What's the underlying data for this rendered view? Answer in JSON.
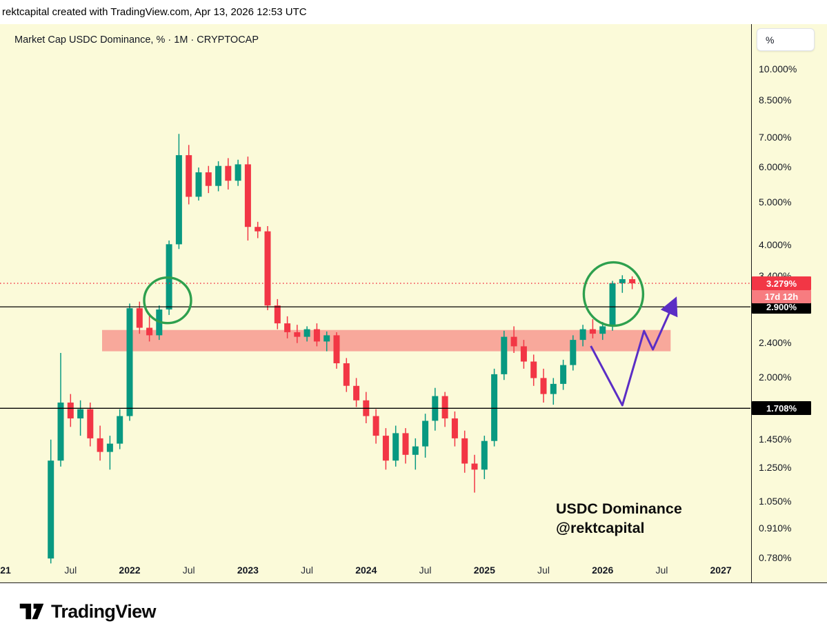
{
  "topbar": {
    "attribution": "rektcapital created with TradingView.com, Apr 13, 2026 12:53 UTC"
  },
  "chart": {
    "title": "Market Cap USDC Dominance, % · 1M · CRYPTOCAP",
    "annotation": {
      "line1": "USDC Dominance",
      "line2": "@rektcapital"
    },
    "axis_unit_button": "%"
  },
  "footer": {
    "brand": "TradingView"
  },
  "colors": {
    "background": "#FBFAD9",
    "candle_up": "#089981",
    "candle_down": "#F23645",
    "zone_fill": "#F23645",
    "circle_stroke": "#2EA04E",
    "arrow_stroke": "#5B2EC5",
    "price_line": "#000000",
    "last_price": "#F23645",
    "countdown_bg": "#F77C80",
    "line_badge_bg": "#000000"
  },
  "chart_data": {
    "type": "candlestick",
    "scale": "logarithmic",
    "interval": "1M",
    "title": "Market Cap USDC Dominance, % · 1M · CRYPTOCAP",
    "ohlc_format": [
      "month",
      "open",
      "high",
      "low",
      "close"
    ],
    "candles": [
      [
        "2021-05",
        0.78,
        1.45,
        0.76,
        1.3
      ],
      [
        "2021-06",
        1.3,
        2.28,
        1.26,
        1.76
      ],
      [
        "2021-07",
        1.76,
        1.84,
        1.55,
        1.62
      ],
      [
        "2021-08",
        1.62,
        1.78,
        1.48,
        1.7
      ],
      [
        "2021-09",
        1.7,
        1.76,
        1.4,
        1.46
      ],
      [
        "2021-10",
        1.46,
        1.56,
        1.3,
        1.36
      ],
      [
        "2021-11",
        1.36,
        1.48,
        1.24,
        1.42
      ],
      [
        "2021-12",
        1.42,
        1.7,
        1.38,
        1.64
      ],
      [
        "2022-01",
        1.64,
        2.95,
        1.6,
        2.88
      ],
      [
        "2022-02",
        2.88,
        2.98,
        2.52,
        2.6
      ],
      [
        "2022-03",
        2.6,
        2.78,
        2.42,
        2.5
      ],
      [
        "2022-04",
        2.5,
        2.92,
        2.44,
        2.86
      ],
      [
        "2022-05",
        2.86,
        4.1,
        2.78,
        4.02
      ],
      [
        "2022-06",
        4.02,
        7.15,
        3.92,
        6.4
      ],
      [
        "2022-07",
        6.4,
        6.75,
        4.95,
        5.15
      ],
      [
        "2022-08",
        5.15,
        6.0,
        5.05,
        5.85
      ],
      [
        "2022-09",
        5.85,
        6.05,
        5.25,
        5.45
      ],
      [
        "2022-10",
        5.45,
        6.2,
        5.3,
        6.05
      ],
      [
        "2022-11",
        6.05,
        6.3,
        5.35,
        5.6
      ],
      [
        "2022-12",
        5.6,
        6.25,
        5.45,
        6.1
      ],
      [
        "2023-01",
        6.1,
        6.35,
        4.1,
        4.4
      ],
      [
        "2023-02",
        4.4,
        4.52,
        4.15,
        4.3
      ],
      [
        "2023-03",
        4.3,
        4.42,
        2.85,
        2.92
      ],
      [
        "2023-04",
        2.92,
        3.02,
        2.58,
        2.66
      ],
      [
        "2023-05",
        2.66,
        2.76,
        2.46,
        2.54
      ],
      [
        "2023-06",
        2.54,
        2.64,
        2.4,
        2.48
      ],
      [
        "2023-07",
        2.48,
        2.62,
        2.42,
        2.58
      ],
      [
        "2023-08",
        2.58,
        2.66,
        2.36,
        2.42
      ],
      [
        "2023-09",
        2.42,
        2.55,
        2.3,
        2.5
      ],
      [
        "2023-10",
        2.5,
        2.54,
        2.1,
        2.16
      ],
      [
        "2023-11",
        2.16,
        2.22,
        1.86,
        1.92
      ],
      [
        "2023-12",
        1.92,
        2.0,
        1.72,
        1.78
      ],
      [
        "2024-01",
        1.78,
        1.86,
        1.58,
        1.64
      ],
      [
        "2024-02",
        1.64,
        1.7,
        1.42,
        1.48
      ],
      [
        "2024-03",
        1.48,
        1.54,
        1.24,
        1.3
      ],
      [
        "2024-04",
        1.3,
        1.56,
        1.26,
        1.5
      ],
      [
        "2024-05",
        1.5,
        1.54,
        1.28,
        1.34
      ],
      [
        "2024-06",
        1.34,
        1.46,
        1.24,
        1.4
      ],
      [
        "2024-07",
        1.4,
        1.66,
        1.32,
        1.6
      ],
      [
        "2024-08",
        1.6,
        1.9,
        1.52,
        1.82
      ],
      [
        "2024-09",
        1.82,
        1.86,
        1.55,
        1.62
      ],
      [
        "2024-10",
        1.62,
        1.68,
        1.4,
        1.46
      ],
      [
        "2024-11",
        1.46,
        1.52,
        1.22,
        1.28
      ],
      [
        "2024-12",
        1.28,
        1.34,
        1.1,
        1.24
      ],
      [
        "2025-01",
        1.24,
        1.48,
        1.18,
        1.44
      ],
      [
        "2025-02",
        1.44,
        2.1,
        1.4,
        2.04
      ],
      [
        "2025-03",
        2.04,
        2.56,
        1.98,
        2.48
      ],
      [
        "2025-04",
        2.48,
        2.62,
        2.28,
        2.36
      ],
      [
        "2025-05",
        2.36,
        2.44,
        2.1,
        2.18
      ],
      [
        "2025-06",
        2.18,
        2.26,
        1.92,
        2.0
      ],
      [
        "2025-07",
        2.0,
        2.1,
        1.76,
        1.84
      ],
      [
        "2025-08",
        1.84,
        2.0,
        1.74,
        1.94
      ],
      [
        "2025-09",
        1.94,
        2.2,
        1.88,
        2.14
      ],
      [
        "2025-10",
        2.14,
        2.5,
        2.08,
        2.44
      ],
      [
        "2025-11",
        2.44,
        2.64,
        2.36,
        2.58
      ],
      [
        "2025-12",
        2.58,
        2.72,
        2.46,
        2.52
      ],
      [
        "2026-01",
        2.52,
        2.68,
        2.44,
        2.62
      ],
      [
        "2026-02",
        2.62,
        3.32,
        2.56,
        3.28
      ],
      [
        "2026-03",
        3.28,
        3.42,
        3.12,
        3.35
      ],
      [
        "2026-04",
        3.35,
        3.4,
        3.18,
        3.279
      ]
    ],
    "y_axis": {
      "unit": "%",
      "ticks": [
        {
          "label": "10.000%",
          "price": 10.0
        },
        {
          "label": "8.500%",
          "price": 8.5
        },
        {
          "label": "7.000%",
          "price": 7.0
        },
        {
          "label": "6.000%",
          "price": 6.0
        },
        {
          "label": "5.000%",
          "price": 5.0
        },
        {
          "label": "4.000%",
          "price": 4.0
        },
        {
          "label": "3.400%",
          "price": 3.4
        },
        {
          "label": "2.400%",
          "price": 2.4
        },
        {
          "label": "2.000%",
          "price": 2.0
        },
        {
          "label": "1.450%",
          "price": 1.45
        },
        {
          "label": "1.250%",
          "price": 1.25
        },
        {
          "label": "1.050%",
          "price": 1.05
        },
        {
          "label": "0.910%",
          "price": 0.91
        },
        {
          "label": "0.780%",
          "price": 0.78
        }
      ]
    },
    "x_axis": {
      "labels": [
        {
          "label": "21",
          "t": -4.6
        },
        {
          "label": "Jul",
          "t": 2
        },
        {
          "label": "2022",
          "t": 8
        },
        {
          "label": "Jul",
          "t": 14
        },
        {
          "label": "2023",
          "t": 20
        },
        {
          "label": "Jul",
          "t": 26
        },
        {
          "label": "2024",
          "t": 32
        },
        {
          "label": "Jul",
          "t": 38
        },
        {
          "label": "2025",
          "t": 44
        },
        {
          "label": "Jul",
          "t": 50
        },
        {
          "label": "2026",
          "t": 56
        },
        {
          "label": "Jul",
          "t": 62
        },
        {
          "label": "2027",
          "t": 68
        }
      ]
    },
    "price_lines": [
      {
        "price": 2.9,
        "label": "2.900%"
      },
      {
        "price": 1.708,
        "label": "1.708%"
      }
    ],
    "last_price": {
      "price": 3.279,
      "label": "3.279%",
      "countdown": "17d 12h"
    },
    "zone": {
      "t1": 5.2,
      "t2": 62.9,
      "top": 2.57,
      "bottom": 2.3,
      "opacity": 0.42
    },
    "circles": [
      {
        "t": 11.85,
        "price": 3.0,
        "rx": 34,
        "ry": 33
      },
      {
        "t": 57.1,
        "price": 3.1,
        "rx": 43,
        "ry": 46
      }
    ],
    "arrow": {
      "points": [
        [
          54.8,
          2.364
        ],
        [
          58.0,
          1.735
        ],
        [
          60.2,
          2.558
        ],
        [
          61.1,
          2.321
        ],
        [
          63.3,
          2.986
        ]
      ]
    }
  }
}
